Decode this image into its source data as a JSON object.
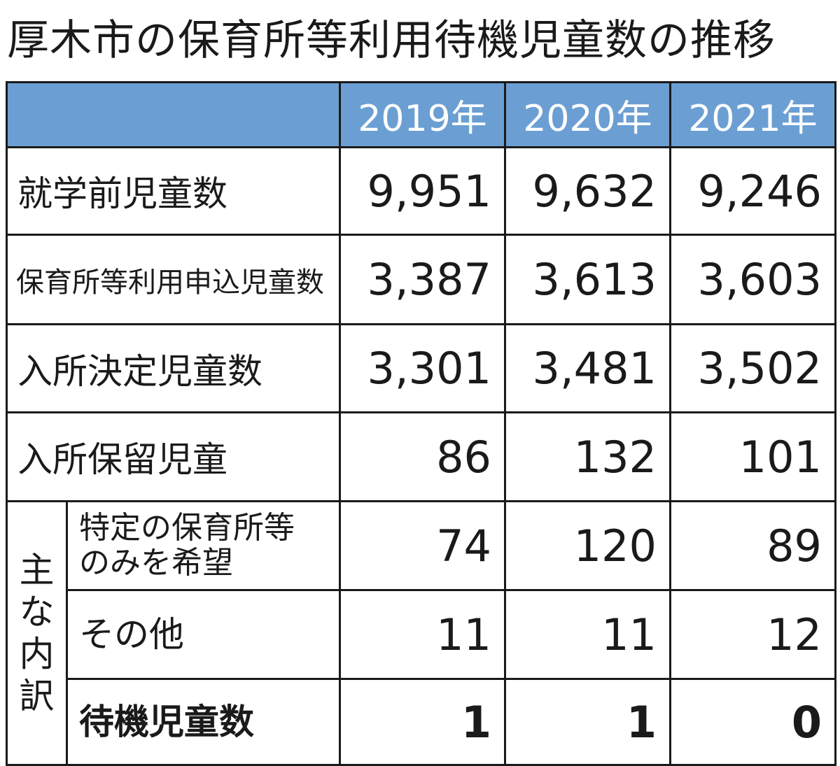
{
  "title": "厚木市の保育所等利用待機児童数の推移",
  "chart_data": {
    "type": "table",
    "columns": [
      "2019年",
      "2020年",
      "2021年"
    ],
    "rows": [
      {
        "label": "就学前児童数",
        "values": [
          "9,951",
          "9,632",
          "9,246"
        ]
      },
      {
        "label": "保育所等利用申込児童数",
        "values": [
          "3,387",
          "3,613",
          "3,603"
        ]
      },
      {
        "label": "入所決定児童数",
        "values": [
          "3,301",
          "3,481",
          "3,502"
        ]
      },
      {
        "label": "入所保留児童",
        "values": [
          "86",
          "132",
          "101"
        ]
      }
    ],
    "breakdown": {
      "group_label": [
        "主",
        "な",
        "内",
        "訳"
      ],
      "rows": [
        {
          "label": "特定の保育所等のみを希望",
          "label_lines": [
            "特定の保育所等",
            "のみを希望"
          ],
          "values": [
            "74",
            "120",
            "89"
          ]
        },
        {
          "label": "その他",
          "values": [
            "11",
            "11",
            "12"
          ]
        },
        {
          "label": "待機児童数",
          "values": [
            "1",
            "1",
            "0"
          ]
        }
      ]
    }
  }
}
